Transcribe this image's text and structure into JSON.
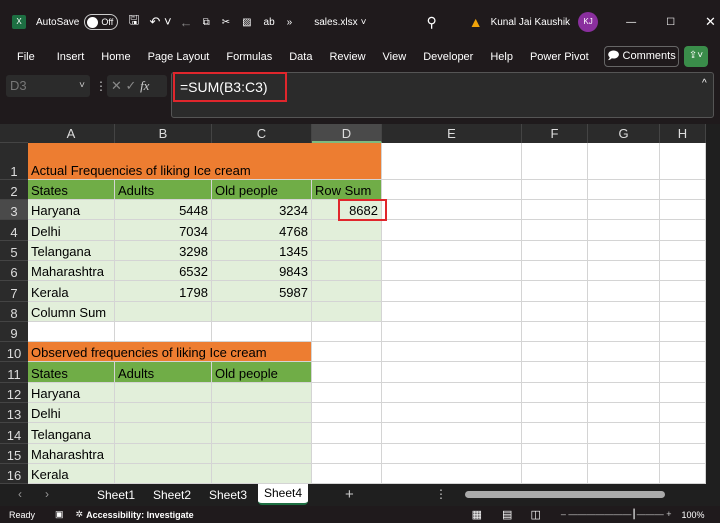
{
  "titlebar": {
    "autosave": "AutoSave",
    "toggle": "Off",
    "filename": "sales.xlsx",
    "user": "Kunal Jai Kaushik",
    "initials": "KJ"
  },
  "ribbon": {
    "tabs": [
      "File",
      "Insert",
      "Home",
      "Page Layout",
      "Formulas",
      "Data",
      "Review",
      "View",
      "Developer",
      "Help",
      "Power Pivot"
    ],
    "comments": "Comments"
  },
  "formula_bar": {
    "name_box": "D3",
    "formula": "=SUM(B3:C3)"
  },
  "columns": [
    "A",
    "B",
    "C",
    "D",
    "E",
    "F",
    "G",
    "H"
  ],
  "rows": [
    "1",
    "2",
    "3",
    "4",
    "5",
    "6",
    "7",
    "8",
    "9",
    "10",
    "11",
    "12",
    "13",
    "14",
    "15",
    "16"
  ],
  "table1": {
    "title": "Actual Frequencies of liking Ice cream",
    "headers": [
      "States",
      "Adults",
      "Old people",
      "Row Sum"
    ],
    "rows": [
      [
        "Haryana",
        "5448",
        "3234",
        "8682"
      ],
      [
        "Delhi",
        "7034",
        "4768",
        ""
      ],
      [
        "Telangana",
        "3298",
        "1345",
        ""
      ],
      [
        "Maharashtra",
        "6532",
        "9843",
        ""
      ],
      [
        "Kerala",
        "1798",
        "5987",
        ""
      ],
      [
        "Column Sum",
        "",
        "",
        ""
      ]
    ]
  },
  "table2": {
    "title": "Observed frequencies of liking Ice cream",
    "headers": [
      "States",
      "Adults",
      "Old people"
    ],
    "rows": [
      [
        "Haryana",
        "",
        ""
      ],
      [
        "Delhi",
        "",
        ""
      ],
      [
        "Telangana",
        "",
        ""
      ],
      [
        "Maharashtra",
        "",
        ""
      ],
      [
        "Kerala",
        "",
        ""
      ]
    ]
  },
  "sheets": [
    "Sheet1",
    "Sheet2",
    "Sheet3",
    "Sheet4"
  ],
  "active_sheet": "Sheet4",
  "status": {
    "ready": "Ready",
    "accessibility": "Accessibility: Investigate",
    "zoom": "100%"
  },
  "colors": {
    "orange": "#ED7D31",
    "green": "#70AD47",
    "light_green": "#E2EFDA",
    "highlight": "#E0262C",
    "excel": "#1D6F42"
  }
}
